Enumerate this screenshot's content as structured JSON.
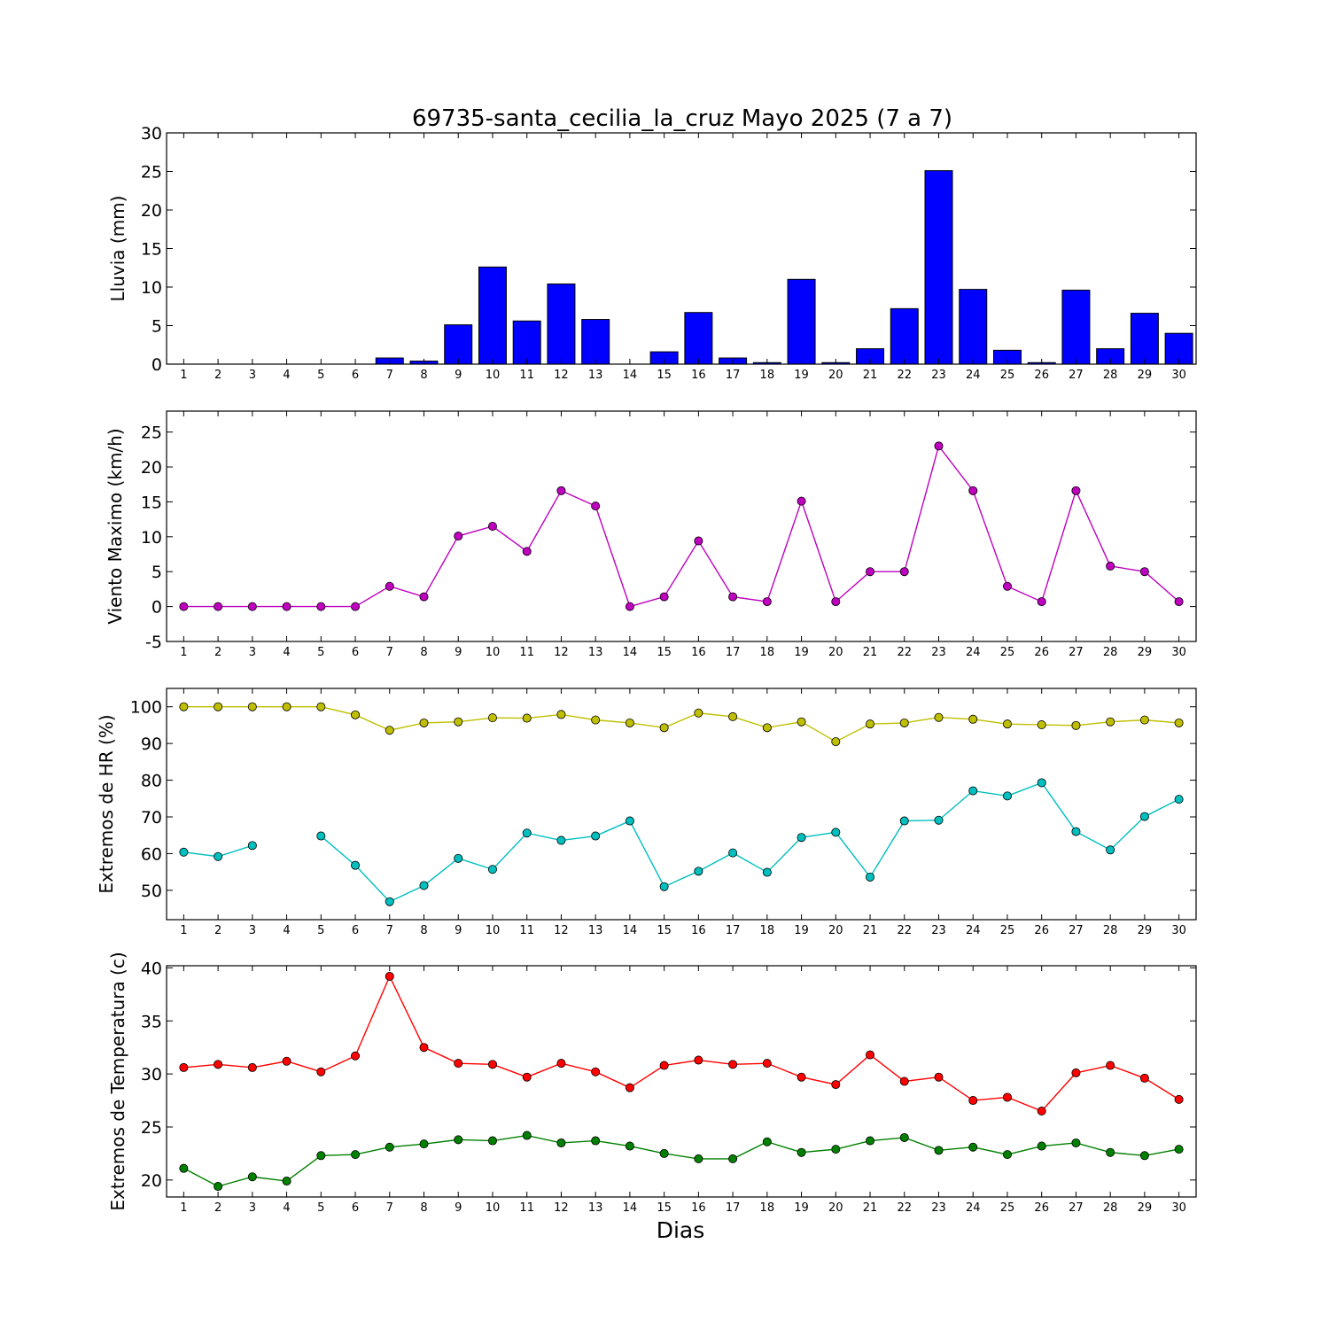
{
  "title": "69735-santa_cecilia_la_cruz Mayo 2025  (7 a 7)",
  "xlabel": "Dias",
  "chart_data": [
    {
      "type": "bar",
      "ylabel": "Lluvia (mm)",
      "ylim": [
        0,
        30
      ],
      "yticks": [
        0,
        5,
        10,
        15,
        20,
        25,
        30
      ],
      "categories": [
        1,
        2,
        3,
        4,
        5,
        6,
        7,
        8,
        9,
        10,
        11,
        12,
        13,
        14,
        15,
        16,
        17,
        18,
        19,
        20,
        21,
        22,
        23,
        24,
        25,
        26,
        27,
        28,
        29,
        30
      ],
      "series": [
        {
          "color": "#0000ff",
          "values": [
            0,
            0,
            0,
            0,
            0,
            0,
            0.8,
            0.4,
            5.1,
            12.6,
            5.6,
            10.4,
            5.8,
            0,
            1.6,
            6.7,
            0.8,
            0.2,
            11,
            0.2,
            2,
            7.2,
            25.1,
            9.7,
            1.8,
            0.2,
            9.6,
            2,
            6.6,
            4
          ]
        }
      ]
    },
    {
      "type": "line",
      "ylabel": "Viento Maximo (km/h)",
      "ylim": [
        -5,
        28
      ],
      "yticks": [
        -5,
        0,
        5,
        10,
        15,
        20,
        25
      ],
      "categories": [
        1,
        2,
        3,
        4,
        5,
        6,
        7,
        8,
        9,
        10,
        11,
        12,
        13,
        14,
        15,
        16,
        17,
        18,
        19,
        20,
        21,
        22,
        23,
        24,
        25,
        26,
        27,
        28,
        29,
        30
      ],
      "series": [
        {
          "color": "#bf00bf",
          "values": [
            0,
            0,
            0,
            0,
            0,
            0,
            2.9,
            1.4,
            10.1,
            11.5,
            7.9,
            16.6,
            14.4,
            0,
            1.4,
            9.4,
            1.4,
            0.7,
            15.1,
            0.7,
            5,
            5,
            23,
            16.6,
            2.9,
            0.7,
            16.6,
            5.8,
            5,
            0.7
          ]
        }
      ]
    },
    {
      "type": "line",
      "ylabel": "Extremos de HR (%)",
      "ylim": [
        42,
        105
      ],
      "yticks": [
        50,
        60,
        70,
        80,
        90,
        100
      ],
      "categories": [
        1,
        2,
        3,
        4,
        5,
        6,
        7,
        8,
        9,
        10,
        11,
        12,
        13,
        14,
        15,
        16,
        17,
        18,
        19,
        20,
        21,
        22,
        23,
        24,
        25,
        26,
        27,
        28,
        29,
        30
      ],
      "series": [
        {
          "color": "#bfbf00",
          "values": [
            100,
            100,
            100,
            100,
            100,
            97.8,
            93.6,
            95.6,
            95.9,
            97,
            96.9,
            97.9,
            96.4,
            95.6,
            94.3,
            98.3,
            97.3,
            94.3,
            95.9,
            90.5,
            95.3,
            95.6,
            97.1,
            96.6,
            95.3,
            95.1,
            94.9,
            95.9,
            96.4,
            95.6
          ]
        },
        {
          "color": "#00bfbf",
          "values": [
            60.4,
            59.2,
            62.2,
            null,
            64.8,
            56.8,
            46.9,
            51.3,
            58.7,
            55.7,
            65.6,
            63.6,
            64.8,
            68.9,
            51,
            55.2,
            60.2,
            54.9,
            64.4,
            65.8,
            53.6,
            68.9,
            69.1,
            77.1,
            75.7,
            79.3,
            66,
            61,
            70.1,
            74.8
          ]
        }
      ]
    },
    {
      "type": "line",
      "ylabel": "Extremos de Temperatura (c)",
      "ylim": [
        18.4,
        40.2
      ],
      "yticks": [
        20,
        25,
        30,
        35,
        40
      ],
      "categories": [
        1,
        2,
        3,
        4,
        5,
        6,
        7,
        8,
        9,
        10,
        11,
        12,
        13,
        14,
        15,
        16,
        17,
        18,
        19,
        20,
        21,
        22,
        23,
        24,
        25,
        26,
        27,
        28,
        29,
        30
      ],
      "series": [
        {
          "color": "#ff0000",
          "values": [
            30.6,
            30.9,
            30.6,
            31.2,
            30.2,
            31.7,
            39.2,
            32.5,
            31,
            30.9,
            29.7,
            31,
            30.2,
            28.7,
            30.8,
            31.3,
            30.9,
            31,
            29.7,
            29,
            31.8,
            29.3,
            29.7,
            27.5,
            27.8,
            26.5,
            30.1,
            30.8,
            29.6,
            27.6
          ]
        },
        {
          "color": "#008000",
          "values": [
            21.1,
            19.4,
            20.3,
            19.9,
            22.3,
            22.4,
            23.1,
            23.4,
            23.8,
            23.7,
            24.2,
            23.5,
            23.7,
            23.2,
            22.5,
            22,
            22,
            23.6,
            22.6,
            22.9,
            23.7,
            24,
            22.8,
            23.1,
            22.4,
            23.2,
            23.5,
            22.6,
            22.3,
            22.9
          ]
        }
      ]
    }
  ]
}
